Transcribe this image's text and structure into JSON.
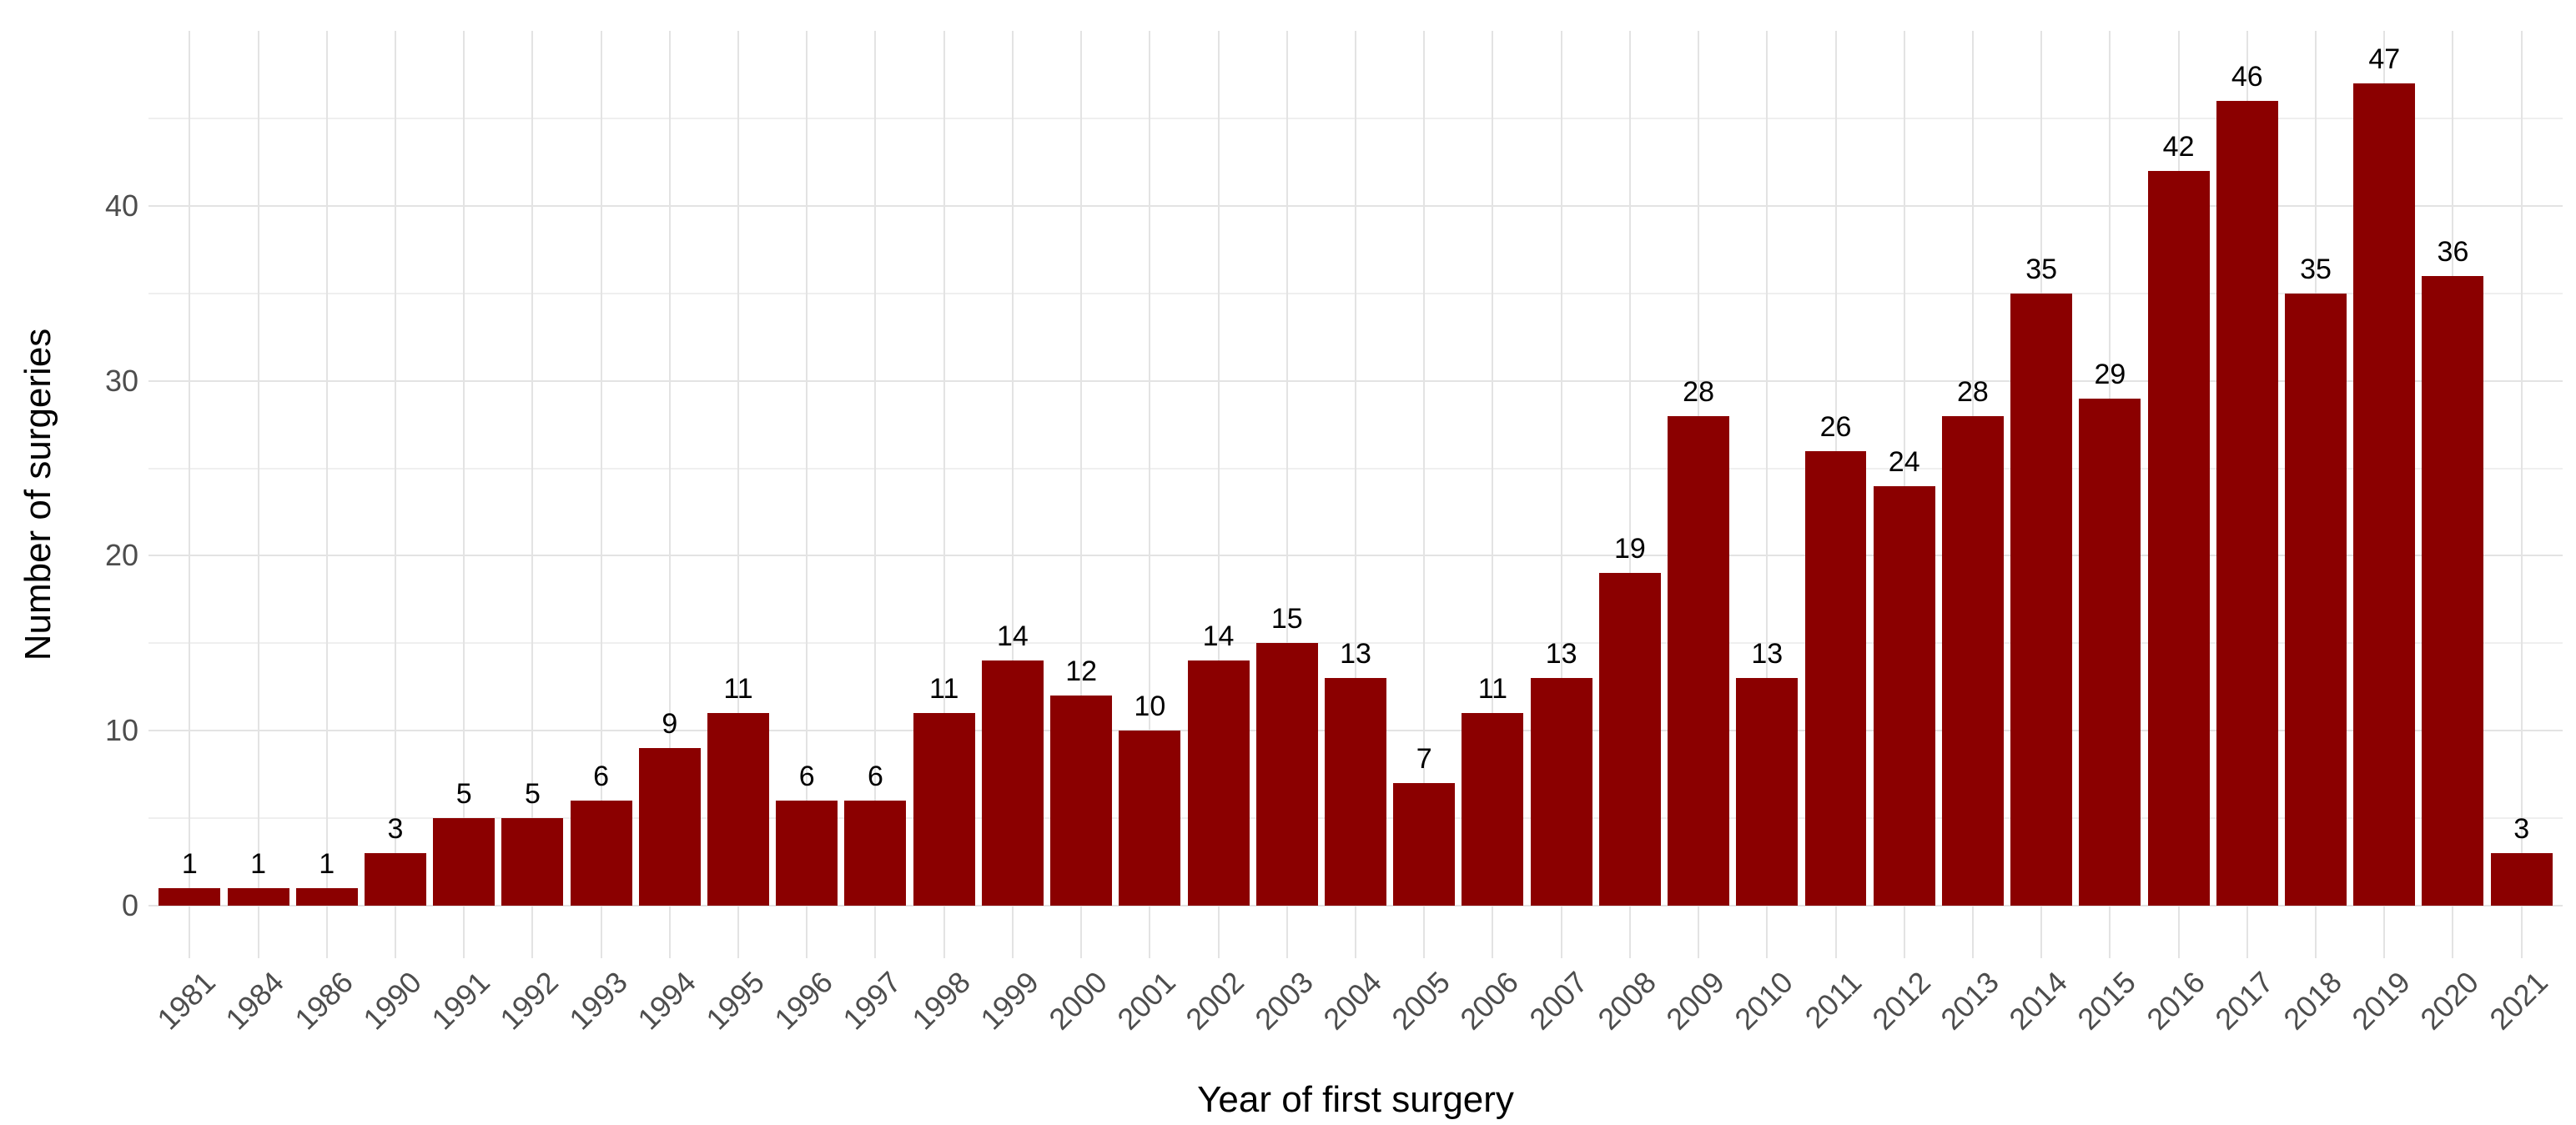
{
  "chart_data": {
    "type": "bar",
    "title": "",
    "xlabel": "Year of first surgery",
    "ylabel": "Number of surgeries",
    "categories": [
      "1981",
      "1984",
      "1986",
      "1990",
      "1991",
      "1992",
      "1993",
      "1994",
      "1995",
      "1996",
      "1997",
      "1998",
      "1999",
      "2000",
      "2001",
      "2002",
      "2003",
      "2004",
      "2005",
      "2006",
      "2007",
      "2008",
      "2009",
      "2010",
      "2011",
      "2012",
      "2013",
      "2014",
      "2015",
      "2016",
      "2017",
      "2018",
      "2019",
      "2020",
      "2021"
    ],
    "values": [
      1,
      1,
      1,
      3,
      5,
      5,
      6,
      9,
      11,
      6,
      6,
      11,
      14,
      12,
      10,
      14,
      15,
      13,
      7,
      11,
      13,
      19,
      28,
      13,
      26,
      24,
      28,
      35,
      29,
      42,
      46,
      35,
      47,
      36,
      3
    ],
    "yticks": [
      0,
      10,
      20,
      30,
      40
    ],
    "yminor": [
      5,
      15,
      25,
      35,
      45
    ],
    "ylim": [
      -3,
      50
    ],
    "x_tick_rotation": -45,
    "grid": true,
    "legend_position": "none",
    "bar_color": "#8B0000",
    "value_label_color": "#000000",
    "axis_text_color": "#4d4d4d",
    "axis_title_color": "#000000",
    "grid_major_color": "#e3e3e3",
    "grid_minor_color": "#efefef",
    "background_color": "#ffffff"
  }
}
